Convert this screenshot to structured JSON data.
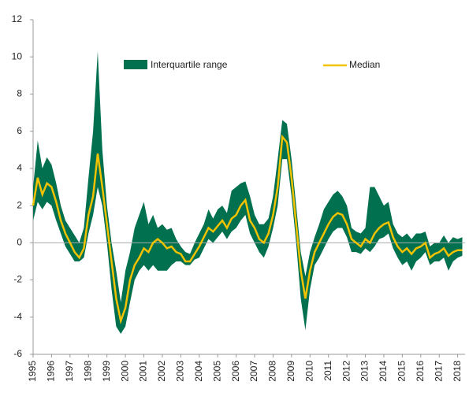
{
  "chart_data": {
    "type": "band_line",
    "x": [
      1995,
      1995.25,
      1995.5,
      1995.75,
      1996,
      1996.25,
      1996.5,
      1996.75,
      1997,
      1997.25,
      1997.5,
      1997.75,
      1998,
      1998.25,
      1998.5,
      1998.75,
      1999,
      1999.25,
      1999.5,
      1999.75,
      2000,
      2000.25,
      2000.5,
      2000.75,
      2001,
      2001.25,
      2001.5,
      2001.75,
      2002,
      2002.25,
      2002.5,
      2002.75,
      2003,
      2003.25,
      2003.5,
      2003.75,
      2004,
      2004.25,
      2004.5,
      2004.75,
      2005,
      2005.25,
      2005.5,
      2005.75,
      2006,
      2006.25,
      2006.5,
      2006.75,
      2007,
      2007.25,
      2007.5,
      2007.75,
      2008,
      2008.25,
      2008.5,
      2008.75,
      2009,
      2009.25,
      2009.5,
      2009.75,
      2010,
      2010.25,
      2010.5,
      2010.75,
      2011,
      2011.25,
      2011.5,
      2011.75,
      2012,
      2012.25,
      2012.5,
      2012.75,
      2013,
      2013.25,
      2013.5,
      2013.75,
      2014,
      2014.25,
      2014.5,
      2014.75,
      2015,
      2015.25,
      2015.5,
      2015.75,
      2016,
      2016.25,
      2016.5,
      2016.75,
      2017,
      2017.25,
      2017.5,
      2017.75,
      2018,
      2018.25
    ],
    "series": [
      {
        "name": "Interquartile range",
        "color": "#00704f",
        "low": [
          1.2,
          2.2,
          1.8,
          2.2,
          2.0,
          1.2,
          0.5,
          -0.2,
          -0.6,
          -1.0,
          -1.0,
          -0.8,
          0.5,
          1.5,
          3.0,
          2.0,
          0.0,
          -2.5,
          -4.5,
          -4.9,
          -4.5,
          -3.2,
          -2.0,
          -1.5,
          -1.2,
          -1.5,
          -1.2,
          -1.5,
          -1.5,
          -1.5,
          -1.2,
          -1.0,
          -1.0,
          -1.2,
          -1.2,
          -0.9,
          -0.8,
          -0.3,
          0.2,
          0.0,
          0.3,
          0.6,
          0.2,
          0.6,
          0.8,
          1.2,
          1.5,
          0.5,
          0.0,
          -0.5,
          -0.8,
          -0.2,
          0.8,
          2.0,
          4.5,
          4.5,
          2.5,
          0.0,
          -3.0,
          -4.7,
          -2.5,
          -1.2,
          -0.8,
          -0.3,
          0.2,
          0.6,
          0.8,
          0.8,
          0.3,
          -0.5,
          -0.5,
          -0.6,
          -0.3,
          -0.5,
          -0.2,
          0.2,
          0.3,
          0.5,
          -0.3,
          -0.8,
          -1.2,
          -1.0,
          -1.5,
          -1.0,
          -0.8,
          -0.5,
          -1.2,
          -1.0,
          -1.0,
          -0.8,
          -1.5,
          -1.0,
          -0.8,
          -0.7
        ],
        "high": [
          3.0,
          5.5,
          4.0,
          4.6,
          4.2,
          3.2,
          2.0,
          1.2,
          0.8,
          0.4,
          0.0,
          0.8,
          3.5,
          6.0,
          10.3,
          5.0,
          2.0,
          0.0,
          -1.5,
          -3.2,
          -1.5,
          -0.5,
          0.8,
          1.5,
          2.2,
          1.0,
          1.5,
          0.8,
          1.0,
          0.7,
          0.8,
          0.2,
          -0.2,
          -0.5,
          -0.6,
          0.0,
          0.5,
          1.0,
          1.8,
          1.3,
          1.8,
          2.0,
          1.6,
          2.8,
          3.0,
          3.2,
          3.3,
          2.5,
          1.5,
          1.0,
          1.0,
          1.3,
          2.5,
          4.5,
          6.6,
          6.4,
          4.5,
          2.0,
          -0.5,
          -1.8,
          -0.5,
          0.3,
          1.0,
          1.8,
          2.2,
          2.6,
          2.8,
          2.5,
          2.0,
          0.8,
          0.6,
          0.5,
          0.8,
          3.0,
          3.0,
          2.5,
          2.0,
          2.2,
          1.0,
          0.5,
          0.3,
          0.5,
          0.2,
          0.5,
          0.5,
          0.6,
          -0.2,
          0.0,
          0.0,
          0.4,
          0.0,
          0.3,
          0.2,
          0.3
        ]
      },
      {
        "name": "Median",
        "color": "#f2c200",
        "values": [
          2.0,
          3.5,
          2.6,
          3.2,
          3.0,
          2.2,
          1.2,
          0.5,
          0.0,
          -0.5,
          -0.8,
          -0.3,
          1.5,
          2.5,
          4.8,
          3.0,
          1.0,
          -1.0,
          -3.0,
          -4.2,
          -3.5,
          -2.0,
          -1.2,
          -0.8,
          -0.3,
          -0.5,
          0.0,
          0.2,
          0.0,
          -0.3,
          -0.2,
          -0.5,
          -0.6,
          -1.0,
          -1.0,
          -0.6,
          -0.2,
          0.3,
          0.8,
          0.6,
          0.9,
          1.2,
          0.8,
          1.3,
          1.5,
          2.0,
          2.3,
          1.2,
          0.8,
          0.2,
          0.0,
          0.5,
          1.5,
          3.0,
          5.7,
          5.4,
          3.5,
          1.0,
          -1.5,
          -3.0,
          -1.5,
          -0.5,
          0.0,
          0.5,
          1.0,
          1.4,
          1.6,
          1.5,
          1.0,
          0.2,
          0.0,
          -0.2,
          0.2,
          0.0,
          0.5,
          0.8,
          1.0,
          1.1,
          0.3,
          -0.2,
          -0.5,
          -0.3,
          -0.6,
          -0.3,
          -0.2,
          0.0,
          -0.8,
          -0.6,
          -0.5,
          -0.3,
          -0.7,
          -0.5,
          -0.4,
          -0.4
        ]
      }
    ],
    "xlim": [
      1995,
      2018.4
    ],
    "xticks": [
      1995,
      1996,
      1997,
      1998,
      1999,
      2000,
      2001,
      2002,
      2003,
      2004,
      2005,
      2006,
      2007,
      2008,
      2009,
      2010,
      2011,
      2012,
      2013,
      2014,
      2015,
      2016,
      2017,
      2018
    ],
    "ylim": [
      -6,
      12
    ],
    "yticks": [
      -6,
      -4,
      -2,
      0,
      2,
      4,
      6,
      8,
      10,
      12
    ],
    "grid": false
  }
}
